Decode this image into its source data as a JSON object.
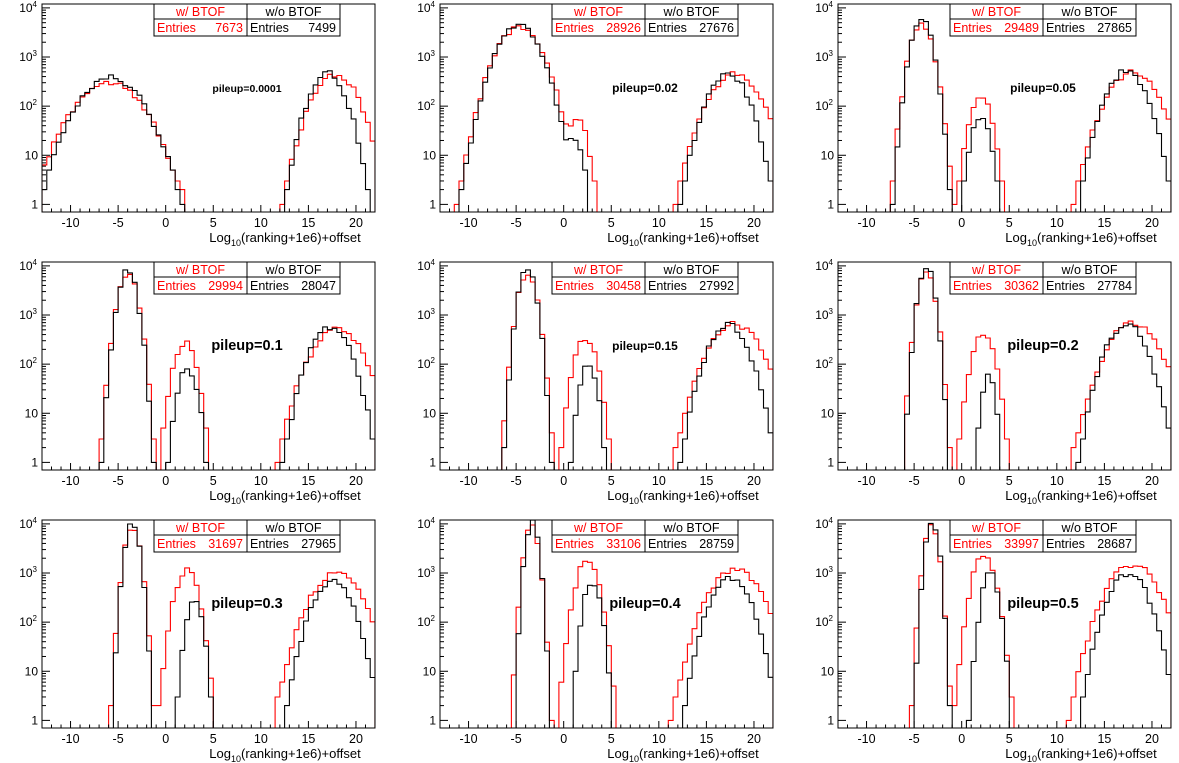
{
  "chart_data": [
    {
      "type": "histogram",
      "annotation": "pileup=0.0001",
      "xlabel_main": "Log",
      "xlabel_sub": "10",
      "xlabel_rest": "(ranking+1e6)+offset",
      "yscale": "log",
      "xlim": [
        -13,
        22
      ],
      "ylim": [
        0.7,
        12000
      ],
      "xticks": [
        "-10",
        "-5",
        "0",
        "5",
        "10",
        "15",
        "20"
      ],
      "yticks": [
        "1",
        "10",
        "10^2",
        "10^3",
        "10^4"
      ],
      "legend": {
        "with_label": "w/ BTOF",
        "without_label": "w/o BTOF",
        "entries_label": "Entries",
        "with_entries": "7673",
        "without_entries": "7499"
      },
      "series": [
        {
          "name": "w/ BTOF",
          "color": "#ff0000",
          "peaks": [
            {
              "center": -6.0,
              "sigma": 2.4,
              "amp": 300
            },
            {
              "center": 17.8,
              "sigma": 1.6,
              "amp": 450
            }
          ],
          "min": 0.9,
          "max": 4.0
        },
        {
          "name": "w/o BTOF",
          "color": "#000000",
          "peaks": [
            {
              "center": -5.8,
              "sigma": 2.2,
              "amp": 380
            },
            {
              "center": 17.0,
              "sigma": 1.3,
              "amp": 470
            }
          ],
          "min": 0.9,
          "max": 4.0
        }
      ]
    },
    {
      "type": "histogram",
      "annotation": "pileup=0.02",
      "xlabel_main": "Log",
      "xlabel_sub": "10",
      "xlabel_rest": "(ranking+1e6)+offset",
      "yscale": "log",
      "xlim": [
        -13,
        22
      ],
      "ylim": [
        0.7,
        12000
      ],
      "xticks": [
        "-10",
        "-5",
        "0",
        "5",
        "10",
        "15",
        "20"
      ],
      "yticks": [
        "1",
        "10",
        "10^2",
        "10^3",
        "10^4"
      ],
      "legend": {
        "with_label": "w/ BTOF",
        "without_label": "w/o BTOF",
        "entries_label": "Entries",
        "with_entries": "28926",
        "without_entries": "27676"
      },
      "series": [
        {
          "name": "w/ BTOF",
          "color": "#ff0000",
          "peaks": [
            {
              "center": -4.7,
              "sigma": 1.6,
              "amp": 4000
            },
            {
              "center": 1.5,
              "sigma": 0.7,
              "amp": 50
            },
            {
              "center": 18.0,
              "sigma": 1.8,
              "amp": 450
            }
          ],
          "min": 0.9,
          "max": 4.0
        },
        {
          "name": "w/o BTOF",
          "color": "#000000",
          "peaks": [
            {
              "center": -4.8,
              "sigma": 1.5,
              "amp": 4400
            },
            {
              "center": 1.2,
              "sigma": 0.6,
              "amp": 22
            },
            {
              "center": 17.2,
              "sigma": 1.4,
              "amp": 480
            }
          ],
          "min": 0.9,
          "max": 4.0
        }
      ]
    },
    {
      "type": "histogram",
      "annotation": "pileup=0.05",
      "xlabel_main": "Log",
      "xlabel_sub": "10",
      "xlabel_rest": "(ranking+1e6)+offset",
      "yscale": "log",
      "xlim": [
        -13,
        22
      ],
      "ylim": [
        0.7,
        12000
      ],
      "xticks": [
        "-10",
        "-5",
        "0",
        "5",
        "10",
        "15",
        "20"
      ],
      "yticks": [
        "1",
        "10",
        "10^2",
        "10^3",
        "10^4"
      ],
      "legend": {
        "with_label": "w/ BTOF",
        "without_label": "w/o BTOF",
        "entries_label": "Entries",
        "with_entries": "29489",
        "without_entries": "27865"
      },
      "series": [
        {
          "name": "w/ BTOF",
          "color": "#ff0000",
          "peaks": [
            {
              "center": -4.2,
              "sigma": 0.8,
              "amp": 4800
            },
            {
              "center": 2.0,
              "sigma": 0.8,
              "amp": 150
            },
            {
              "center": 18.0,
              "sigma": 1.8,
              "amp": 500
            }
          ],
          "min": 0.9,
          "max": 4.0
        },
        {
          "name": "w/o BTOF",
          "color": "#000000",
          "peaks": [
            {
              "center": -4.2,
              "sigma": 0.75,
              "amp": 5500
            },
            {
              "center": 2.0,
              "sigma": 0.7,
              "amp": 60
            },
            {
              "center": 17.3,
              "sigma": 1.4,
              "amp": 520
            }
          ],
          "min": 0.9,
          "max": 4.0
        }
      ]
    },
    {
      "type": "histogram",
      "annotation": "pileup=0.1",
      "xlabel_main": "Log",
      "xlabel_sub": "10",
      "xlabel_rest": "(ranking+1e6)+offset",
      "yscale": "log",
      "xlim": [
        -13,
        22
      ],
      "ylim": [
        0.7,
        12000
      ],
      "xticks": [
        "-10",
        "-5",
        "0",
        "5",
        "10",
        "15",
        "20"
      ],
      "yticks": [
        "1",
        "10",
        "10^2",
        "10^3",
        "10^4"
      ],
      "legend": {
        "with_label": "w/ BTOF",
        "without_label": "w/o BTOF",
        "entries_label": "Entries",
        "with_entries": "29994",
        "without_entries": "28047"
      },
      "series": [
        {
          "name": "w/ BTOF",
          "color": "#ff0000",
          "peaks": [
            {
              "center": -4.0,
              "sigma": 0.7,
              "amp": 7000
            },
            {
              "center": 2.0,
              "sigma": 0.8,
              "amp": 280
            },
            {
              "center": 18.0,
              "sigma": 1.8,
              "amp": 520
            }
          ],
          "min": 0.9,
          "max": 4.0
        },
        {
          "name": "w/o BTOF",
          "color": "#000000",
          "peaks": [
            {
              "center": -4.0,
              "sigma": 0.65,
              "amp": 8000
            },
            {
              "center": 2.3,
              "sigma": 0.7,
              "amp": 80
            },
            {
              "center": 17.3,
              "sigma": 1.4,
              "amp": 560
            }
          ],
          "min": 0.9,
          "max": 4.0
        }
      ]
    },
    {
      "type": "histogram",
      "annotation": "pileup=0.15",
      "xlabel_main": "Log",
      "xlabel_sub": "10",
      "xlabel_rest": "(ranking+1e6)+offset",
      "yscale": "log",
      "xlim": [
        -13,
        22
      ],
      "ylim": [
        0.7,
        12000
      ],
      "xticks": [
        "-10",
        "-5",
        "0",
        "5",
        "10",
        "15",
        "20"
      ],
      "yticks": [
        "1",
        "10",
        "10^2",
        "10^3",
        "10^4"
      ],
      "legend": {
        "with_label": "w/ BTOF",
        "without_label": "w/o BTOF",
        "entries_label": "Entries",
        "with_entries": "30458",
        "without_entries": "27992"
      },
      "series": [
        {
          "name": "w/ BTOF",
          "color": "#ff0000",
          "peaks": [
            {
              "center": -3.8,
              "sigma": 0.65,
              "amp": 7500
            },
            {
              "center": 2.3,
              "sigma": 0.8,
              "amp": 330
            },
            {
              "center": 18.0,
              "sigma": 1.8,
              "amp": 650
            }
          ],
          "min": 0.9,
          "max": 4.0
        },
        {
          "name": "w/o BTOF",
          "color": "#000000",
          "peaks": [
            {
              "center": -3.8,
              "sigma": 0.6,
              "amp": 9000
            },
            {
              "center": 2.6,
              "sigma": 0.6,
              "amp": 110
            },
            {
              "center": 17.3,
              "sigma": 1.4,
              "amp": 620
            }
          ],
          "min": 0.9,
          "max": 4.0
        }
      ]
    },
    {
      "type": "histogram",
      "annotation": "pileup=0.2",
      "xlabel_main": "Log",
      "xlabel_sub": "10",
      "xlabel_rest": "(ranking+1e6)+offset",
      "yscale": "log",
      "xlim": [
        -13,
        22
      ],
      "ylim": [
        0.7,
        12000
      ],
      "xticks": [
        "-10",
        "-5",
        "0",
        "5",
        "10",
        "15",
        "20"
      ],
      "yticks": [
        "1",
        "10",
        "10^2",
        "10^3",
        "10^4"
      ],
      "legend": {
        "with_label": "w/ BTOF",
        "without_label": "w/o BTOF",
        "entries_label": "Entries",
        "with_entries": "30362",
        "without_entries": "27784"
      },
      "series": [
        {
          "name": "w/ BTOF",
          "color": "#ff0000",
          "peaks": [
            {
              "center": -3.7,
              "sigma": 0.6,
              "amp": 7800
            },
            {
              "center": 2.3,
              "sigma": 0.8,
              "amp": 400
            },
            {
              "center": 18.0,
              "sigma": 1.8,
              "amp": 680
            }
          ],
          "min": 0.9,
          "max": 4.0
        },
        {
          "name": "w/o BTOF",
          "color": "#000000",
          "peaks": [
            {
              "center": -3.7,
              "sigma": 0.55,
              "amp": 9500
            },
            {
              "center": 2.8,
              "sigma": 0.5,
              "amp": 55
            },
            {
              "center": 17.3,
              "sigma": 1.4,
              "amp": 640
            }
          ],
          "min": 0.9,
          "max": 4.0
        }
      ]
    },
    {
      "type": "histogram",
      "annotation": "pileup=0.3",
      "xlabel_main": "Log",
      "xlabel_sub": "10",
      "xlabel_rest": "(ranking+1e6)+offset",
      "yscale": "log",
      "xlim": [
        -13,
        22
      ],
      "ylim": [
        0.7,
        12000
      ],
      "xticks": [
        "-10",
        "-5",
        "0",
        "5",
        "10",
        "15",
        "20"
      ],
      "yticks": [
        "1",
        "10",
        "10^2",
        "10^3",
        "10^4"
      ],
      "legend": {
        "with_label": "w/ BTOF",
        "without_label": "w/o BTOF",
        "entries_label": "Entries",
        "with_entries": "31697",
        "without_entries": "27965"
      },
      "series": [
        {
          "name": "w/ BTOF",
          "color": "#ff0000",
          "peaks": [
            {
              "center": -3.5,
              "sigma": 0.55,
              "amp": 9000
            },
            {
              "center": 2.2,
              "sigma": 0.8,
              "amp": 1200
            },
            {
              "center": 18.0,
              "sigma": 1.8,
              "amp": 1000
            }
          ],
          "min": 0.9,
          "max": 4.0
        },
        {
          "name": "w/o BTOF",
          "color": "#000000",
          "peaks": [
            {
              "center": -3.5,
              "sigma": 0.5,
              "amp": 11000
            },
            {
              "center": 3.0,
              "sigma": 0.6,
              "amp": 250
            },
            {
              "center": 17.5,
              "sigma": 1.4,
              "amp": 700
            }
          ],
          "min": 0.9,
          "max": 4.0
        }
      ]
    },
    {
      "type": "histogram",
      "annotation": "pileup=0.4",
      "xlabel_main": "Log",
      "xlabel_sub": "10",
      "xlabel_rest": "(ranking+1e6)+offset",
      "yscale": "log",
      "xlim": [
        -13,
        22
      ],
      "ylim": [
        0.7,
        12000
      ],
      "xticks": [
        "-10",
        "-5",
        "0",
        "5",
        "10",
        "15",
        "20"
      ],
      "yticks": [
        "1",
        "10",
        "10^2",
        "10^3",
        "10^4"
      ],
      "legend": {
        "with_label": "w/ BTOF",
        "without_label": "w/o BTOF",
        "entries_label": "Entries",
        "with_entries": "33106",
        "without_entries": "28759"
      },
      "series": [
        {
          "name": "w/ BTOF",
          "color": "#ff0000",
          "peaks": [
            {
              "center": -3.4,
              "sigma": 0.5,
              "amp": 9000
            },
            {
              "center": 2.5,
              "sigma": 0.8,
              "amp": 1900
            },
            {
              "center": 18.0,
              "sigma": 1.8,
              "amp": 1200
            }
          ],
          "min": 0.9,
          "max": 4.0
        },
        {
          "name": "w/o BTOF",
          "color": "#000000",
          "peaks": [
            {
              "center": -3.3,
              "sigma": 0.45,
              "amp": 11000
            },
            {
              "center": 3.0,
              "sigma": 0.6,
              "amp": 700
            },
            {
              "center": 17.5,
              "sigma": 1.4,
              "amp": 800
            }
          ],
          "min": 0.9,
          "max": 4.0
        }
      ]
    },
    {
      "type": "histogram",
      "annotation": "pileup=0.5",
      "xlabel_main": "Log",
      "xlabel_sub": "10",
      "xlabel_rest": "(ranking+1e6)+offset",
      "yscale": "log",
      "xlim": [
        -13,
        22
      ],
      "ylim": [
        0.7,
        12000
      ],
      "xticks": [
        "-10",
        "-5",
        "0",
        "5",
        "10",
        "15",
        "20"
      ],
      "yticks": [
        "1",
        "10",
        "10^2",
        "10^3",
        "10^4"
      ],
      "legend": {
        "with_label": "w/ BTOF",
        "without_label": "w/o BTOF",
        "entries_label": "Entries",
        "with_entries": "33997",
        "without_entries": "28687"
      },
      "series": [
        {
          "name": "w/ BTOF",
          "color": "#ff0000",
          "peaks": [
            {
              "center": -3.2,
              "sigma": 0.5,
              "amp": 9000
            },
            {
              "center": 2.3,
              "sigma": 0.8,
              "amp": 2300
            },
            {
              "center": 18.0,
              "sigma": 1.8,
              "amp": 1500
            }
          ],
          "min": 0.9,
          "max": 4.0
        },
        {
          "name": "w/o BTOF",
          "color": "#000000",
          "peaks": [
            {
              "center": -3.1,
              "sigma": 0.45,
              "amp": 11500
            },
            {
              "center": 3.0,
              "sigma": 0.6,
              "amp": 1000
            },
            {
              "center": 17.5,
              "sigma": 1.4,
              "amp": 1000
            }
          ],
          "min": 0.9,
          "max": 4.0
        }
      ]
    }
  ]
}
